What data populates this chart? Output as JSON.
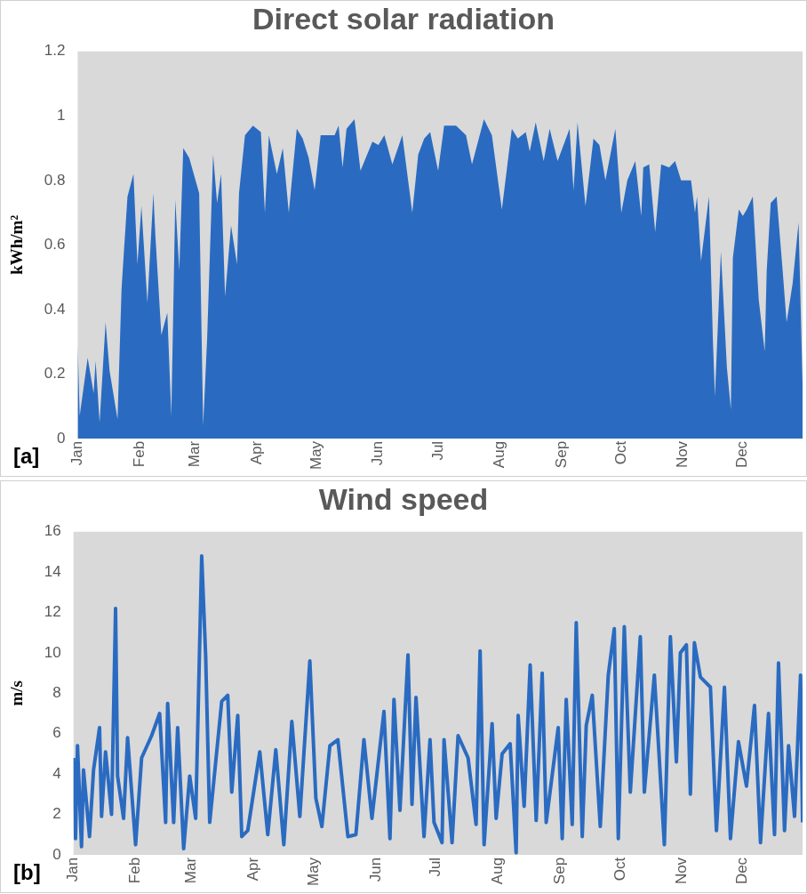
{
  "chart_data": [
    {
      "type": "area",
      "title": "Direct solar radiation",
      "ylabel": "kWh/m²",
      "annotations": [
        "[a]"
      ],
      "xlim": [
        "--01-01",
        "--12-31"
      ],
      "xticks": [
        {
          "value": "--01-01",
          "label": "Jan"
        },
        {
          "value": "--02-01",
          "label": "Feb"
        },
        {
          "value": "--03-01",
          "label": "Mar"
        },
        {
          "value": "--04-01",
          "label": "Apr"
        },
        {
          "value": "--05-01",
          "label": "May"
        },
        {
          "value": "--06-01",
          "label": "Jun"
        },
        {
          "value": "--07-01",
          "label": "Jul"
        },
        {
          "value": "--08-01",
          "label": "Aug"
        },
        {
          "value": "--09-01",
          "label": "Sep"
        },
        {
          "value": "--10-01",
          "label": "Oct"
        },
        {
          "value": "--11-01",
          "label": "Nov"
        },
        {
          "value": "--12-01",
          "label": "Dec"
        }
      ],
      "ylim": [
        0,
        1.2
      ],
      "yticks": [
        0,
        0.2,
        0.4,
        0.6,
        0.8,
        1,
        1.2
      ],
      "grid": false,
      "legend": false,
      "series": [
        {
          "color": "#2a6bc1",
          "x": [
            "--01-01",
            "--01-02",
            "--01-06",
            "--01-09",
            "--01-10",
            "--01-12",
            "--01-15",
            "--01-17",
            "--01-21",
            "--01-23",
            "--01-24",
            "--01-26",
            "--01-29",
            "--01-31",
            "--02-02",
            "--02-05",
            "--02-08",
            "--02-09",
            "--02-12",
            "--02-15",
            "--02-17",
            "--02-19",
            "--02-21",
            "--02-23",
            "--02-26",
            "--03-03",
            "--03-05",
            "--03-07",
            "--03-10",
            "--03-12",
            "--03-14",
            "--03-16",
            "--03-19",
            "--03-22",
            "--03-23",
            "--03-26",
            "--03-30",
            "--04-03",
            "--04-05",
            "--04-07",
            "--04-11",
            "--04-14",
            "--04-17",
            "--04-21",
            "--04-24",
            "--04-27",
            "--04-30",
            "--05-03",
            "--05-06",
            "--05-10",
            "--05-12",
            "--05-14",
            "--05-16",
            "--05-20",
            "--05-23",
            "--05-29",
            "--06-01",
            "--06-04",
            "--06-08",
            "--06-13",
            "--06-18",
            "--06-21",
            "--06-24",
            "--06-27",
            "--07-01",
            "--07-04",
            "--07-10",
            "--07-15",
            "--07-18",
            "--07-24",
            "--07-28",
            "--08-02",
            "--08-07",
            "--08-10",
            "--08-14",
            "--08-16",
            "--08-19",
            "--08-23",
            "--08-26",
            "--08-30",
            "--09-05",
            "--09-07",
            "--09-09",
            "--09-13",
            "--09-17",
            "--09-20",
            "--09-23",
            "--09-28",
            "--10-01",
            "--10-04",
            "--10-08",
            "--10-11",
            "--10-12",
            "--10-15",
            "--10-18",
            "--10-21",
            "--10-25",
            "--10-28",
            "--10-31",
            "--11-05",
            "--11-07",
            "--11-08",
            "--11-10",
            "--11-14",
            "--11-16",
            "--11-17",
            "--11-20",
            "--11-23",
            "--11-25",
            "--11-26",
            "--11-29",
            "--12-01",
            "--12-03",
            "--12-06",
            "--12-09",
            "--12-12",
            "--12-13",
            "--12-15",
            "--12-18",
            "--12-21",
            "--12-23",
            "--12-26",
            "--12-29",
            "--12-31"
          ],
          "values": [
            0.29,
            0.07,
            0.25,
            0.14,
            0.24,
            0.05,
            0.36,
            0.21,
            0.06,
            0.46,
            0.56,
            0.75,
            0.82,
            0.54,
            0.72,
            0.42,
            0.76,
            0.63,
            0.32,
            0.39,
            0.07,
            0.74,
            0.52,
            0.9,
            0.87,
            0.76,
            0.04,
            0.31,
            0.88,
            0.73,
            0.82,
            0.44,
            0.66,
            0.54,
            0.76,
            0.94,
            0.97,
            0.95,
            0.7,
            0.94,
            0.82,
            0.9,
            0.7,
            0.96,
            0.93,
            0.87,
            0.77,
            0.94,
            0.94,
            0.94,
            0.97,
            0.84,
            0.96,
            0.99,
            0.83,
            0.92,
            0.91,
            0.94,
            0.85,
            0.94,
            0.7,
            0.88,
            0.93,
            0.95,
            0.83,
            0.97,
            0.97,
            0.94,
            0.85,
            0.99,
            0.94,
            0.71,
            0.96,
            0.93,
            0.95,
            0.89,
            0.98,
            0.86,
            0.96,
            0.86,
            0.96,
            0.77,
            0.98,
            0.72,
            0.93,
            0.91,
            0.8,
            0.96,
            0.7,
            0.8,
            0.86,
            0.69,
            0.84,
            0.85,
            0.64,
            0.85,
            0.84,
            0.86,
            0.8,
            0.8,
            0.7,
            0.75,
            0.55,
            0.75,
            0.3,
            0.13,
            0.58,
            0.22,
            0.09,
            0.56,
            0.71,
            0.69,
            0.71,
            0.75,
            0.43,
            0.27,
            0.52,
            0.73,
            0.75,
            0.52,
            0.36,
            0.48,
            0.67,
            0.17
          ]
        }
      ]
    },
    {
      "type": "line",
      "title": "Wind speed",
      "ylabel": "m/s",
      "annotations": [
        "[b]"
      ],
      "xlim": [
        "--01-01",
        "--12-31"
      ],
      "xticks": [
        {
          "value": "--01-01",
          "label": "Jan"
        },
        {
          "value": "--02-01",
          "label": "Feb"
        },
        {
          "value": "--03-01",
          "label": "Mar"
        },
        {
          "value": "--04-01",
          "label": "Apr"
        },
        {
          "value": "--05-01",
          "label": "May"
        },
        {
          "value": "--06-01",
          "label": "Jun"
        },
        {
          "value": "--07-01",
          "label": "Jul"
        },
        {
          "value": "--08-01",
          "label": "Aug"
        },
        {
          "value": "--09-01",
          "label": "Sep"
        },
        {
          "value": "--10-01",
          "label": "Oct"
        },
        {
          "value": "--11-01",
          "label": "Nov"
        },
        {
          "value": "--12-01",
          "label": "Dec"
        }
      ],
      "ylim": [
        0,
        16
      ],
      "yticks": [
        0,
        2,
        4,
        6,
        8,
        10,
        12,
        14,
        16
      ],
      "grid": false,
      "legend": false,
      "marker": "none",
      "line_style": "solid",
      "series": [
        {
          "color": "#2a6bc1",
          "x": [
            "--01-01",
            "--01-02",
            "--01-03",
            "--01-05",
            "--01-06",
            "--01-09",
            "--01-11",
            "--01-14",
            "--01-15",
            "--01-17",
            "--01-20",
            "--01-22",
            "--01-23",
            "--01-26",
            "--01-28",
            "--02-01",
            "--02-04",
            "--02-09",
            "--02-13",
            "--02-16",
            "--02-17",
            "--02-20",
            "--02-22",
            "--02-25",
            "--02-28",
            "--03-03",
            "--03-06",
            "--03-08",
            "--03-10",
            "--03-16",
            "--03-19",
            "--03-21",
            "--03-24",
            "--03-26",
            "--03-29",
            "--04-04",
            "--04-08",
            "--04-12",
            "--04-16",
            "--04-20",
            "--04-24",
            "--04-29",
            "--05-02",
            "--05-05",
            "--05-09",
            "--05-13",
            "--05-18",
            "--05-22",
            "--05-26",
            "--05-30",
            "--06-05",
            "--06-08",
            "--06-10",
            "--06-13",
            "--06-17",
            "--06-19",
            "--06-21",
            "--06-25",
            "--06-28",
            "--06-30",
            "--07-04",
            "--07-05",
            "--07-09",
            "--07-12",
            "--07-17",
            "--07-21",
            "--07-23",
            "--07-25",
            "--07-29",
            "--07-31",
            "--08-03",
            "--08-07",
            "--08-10",
            "--08-11",
            "--08-14",
            "--08-17",
            "--08-20",
            "--08-23",
            "--08-25",
            "--08-31",
            "--09-02",
            "--09-04",
            "--09-07",
            "--09-09",
            "--09-12",
            "--09-14",
            "--09-17",
            "--09-21",
            "--09-25",
            "--09-28",
            "--09-30",
            "--10-03",
            "--10-06",
            "--10-11",
            "--10-13",
            "--10-18",
            "--10-23",
            "--10-26",
            "--10-29",
            "--10-31",
            "--11-03",
            "--11-05",
            "--11-07",
            "--11-10",
            "--11-15",
            "--11-18",
            "--11-22",
            "--11-25",
            "--11-29",
            "--12-03",
            "--12-07",
            "--12-10",
            "--12-14",
            "--12-17",
            "--12-19",
            "--12-22",
            "--12-24",
            "--12-27",
            "--12-30",
            "--12-31"
          ],
          "values": [
            4.8,
            0.8,
            5.4,
            0.4,
            4.2,
            0.9,
            4.2,
            6.3,
            1.9,
            5.1,
            2.0,
            12.2,
            3.9,
            1.8,
            5.8,
            0.5,
            4.8,
            5.9,
            7.0,
            1.6,
            7.5,
            1.6,
            6.3,
            0.3,
            3.9,
            1.8,
            14.8,
            9.8,
            1.6,
            7.6,
            7.9,
            3.1,
            6.9,
            0.9,
            1.2,
            5.1,
            1.0,
            5.2,
            0.5,
            6.6,
            1.9,
            9.6,
            2.8,
            1.4,
            5.4,
            5.7,
            0.9,
            1.0,
            5.7,
            1.8,
            7.1,
            0.8,
            7.7,
            2.2,
            9.9,
            2.5,
            7.8,
            0.9,
            5.7,
            1.6,
            0.6,
            5.7,
            0.6,
            5.9,
            4.8,
            1.5,
            10.1,
            0.5,
            6.5,
            1.8,
            5.0,
            5.5,
            0.1,
            6.9,
            2.4,
            9.4,
            1.7,
            9.0,
            1.6,
            6.3,
            0.8,
            7.7,
            1.5,
            11.5,
            0.9,
            6.4,
            7.9,
            1.4,
            8.9,
            11.2,
            0.8,
            11.3,
            3.1,
            10.8,
            3.1,
            8.9,
            0.5,
            10.8,
            4.6,
            10.0,
            10.4,
            3.0,
            10.5,
            8.8,
            8.3,
            1.2,
            8.3,
            0.8,
            5.6,
            3.4,
            7.4,
            0.6,
            7.0,
            1.0,
            9.5,
            1.2,
            5.4,
            1.9,
            8.9,
            1.6
          ]
        }
      ]
    }
  ]
}
